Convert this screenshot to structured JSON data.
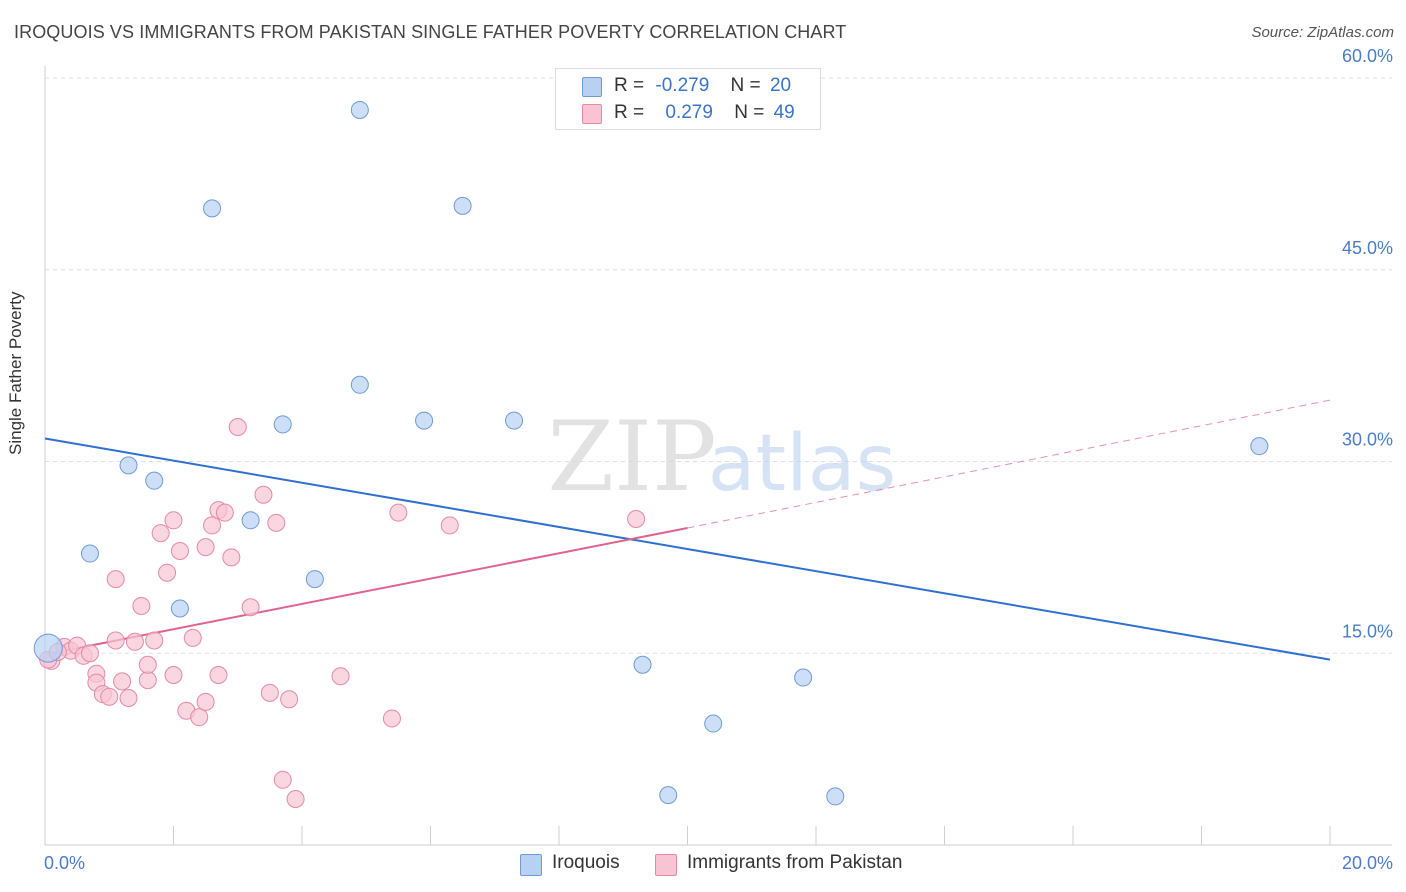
{
  "title": "IROQUOIS VS IMMIGRANTS FROM PAKISTAN SINGLE FATHER POVERTY CORRELATION CHART",
  "source": "Source: ZipAtlas.com",
  "watermark": {
    "zip": "ZIP",
    "atlas": "atlas"
  },
  "legend_top": {
    "rows": [
      {
        "r_label": "R =",
        "r_value": "-0.279",
        "n_label": "N =",
        "n_value": "20",
        "color": "#b8d1f3"
      },
      {
        "r_label": "R =",
        "r_value": "0.279",
        "n_label": "N =",
        "n_value": "49",
        "color": "#f8c4d4"
      }
    ]
  },
  "legend_bottom": [
    {
      "label": "Iroquois",
      "color": "#b8d1f3"
    },
    {
      "label": "Immigrants from Pakistan",
      "color": "#f8c4d4"
    }
  ],
  "chart_data": {
    "type": "scatter",
    "ylabel": "Single Father Poverty",
    "xlim": [
      0,
      20
    ],
    "ylim": [
      0,
      60
    ],
    "x_tick_labels": [
      "0.0%",
      "20.0%"
    ],
    "y_ticks": [
      15,
      30,
      45,
      60
    ],
    "y_tick_labels": [
      "15.0%",
      "30.0%",
      "45.0%",
      "60.0%"
    ],
    "grid": true,
    "series": [
      {
        "name": "Iroquois",
        "color": "#b8d1f3",
        "stroke": "#6f9ad6",
        "line_color": "#2f6fcf",
        "trend": {
          "x": [
            0,
            20
          ],
          "y": [
            31.8,
            14.5
          ]
        },
        "points": [
          [
            0.05,
            15.4
          ],
          [
            4.9,
            57.5
          ],
          [
            2.6,
            49.8
          ],
          [
            6.5,
            50.0
          ],
          [
            4.9,
            36.0
          ],
          [
            3.7,
            32.9
          ],
          [
            5.9,
            33.2
          ],
          [
            7.3,
            33.2
          ],
          [
            1.3,
            29.7
          ],
          [
            1.7,
            28.5
          ],
          [
            3.2,
            25.4
          ],
          [
            0.7,
            22.8
          ],
          [
            4.2,
            20.8
          ],
          [
            2.1,
            18.5
          ],
          [
            18.9,
            31.2
          ],
          [
            9.3,
            14.1
          ],
          [
            11.8,
            13.1
          ],
          [
            10.4,
            9.5
          ],
          [
            9.7,
            3.9
          ],
          [
            12.3,
            3.8
          ]
        ]
      },
      {
        "name": "Immigrants from Pakistan",
        "color": "#f8c4d4",
        "stroke": "#e48aa7",
        "line_color": "#e0638d",
        "trend": {
          "x": [
            0,
            10
          ],
          "y": [
            14.9,
            24.8
          ]
        },
        "trend_extended": {
          "x": [
            10,
            20
          ],
          "y": [
            24.8,
            34.8
          ]
        },
        "points": [
          [
            0.1,
            14.4
          ],
          [
            0.3,
            15.5
          ],
          [
            0.4,
            15.2
          ],
          [
            0.5,
            15.6
          ],
          [
            0.6,
            14.8
          ],
          [
            0.7,
            15.0
          ],
          [
            0.8,
            13.4
          ],
          [
            0.8,
            12.7
          ],
          [
            0.9,
            11.8
          ],
          [
            1.0,
            11.6
          ],
          [
            1.1,
            16.0
          ],
          [
            1.1,
            20.8
          ],
          [
            1.2,
            12.8
          ],
          [
            1.3,
            11.5
          ],
          [
            1.4,
            15.9
          ],
          [
            1.5,
            18.7
          ],
          [
            1.6,
            12.9
          ],
          [
            1.6,
            14.1
          ],
          [
            1.7,
            16.0
          ],
          [
            1.8,
            24.4
          ],
          [
            1.9,
            21.3
          ],
          [
            2.0,
            25.4
          ],
          [
            2.0,
            13.3
          ],
          [
            2.1,
            23.0
          ],
          [
            2.2,
            10.5
          ],
          [
            2.3,
            16.2
          ],
          [
            2.4,
            10.0
          ],
          [
            2.5,
            11.2
          ],
          [
            2.5,
            23.3
          ],
          [
            2.6,
            25.0
          ],
          [
            2.7,
            13.3
          ],
          [
            2.7,
            26.2
          ],
          [
            2.8,
            26.0
          ],
          [
            2.9,
            22.5
          ],
          [
            3.0,
            32.7
          ],
          [
            3.2,
            18.6
          ],
          [
            3.4,
            27.4
          ],
          [
            3.5,
            11.9
          ],
          [
            3.6,
            25.2
          ],
          [
            3.7,
            5.1
          ],
          [
            3.8,
            11.4
          ],
          [
            3.9,
            3.6
          ],
          [
            4.6,
            13.2
          ],
          [
            5.5,
            26.0
          ],
          [
            5.4,
            9.9
          ],
          [
            6.3,
            25.0
          ],
          [
            9.2,
            25.5
          ],
          [
            0.05,
            14.5
          ],
          [
            0.2,
            15.1
          ]
        ]
      }
    ]
  }
}
